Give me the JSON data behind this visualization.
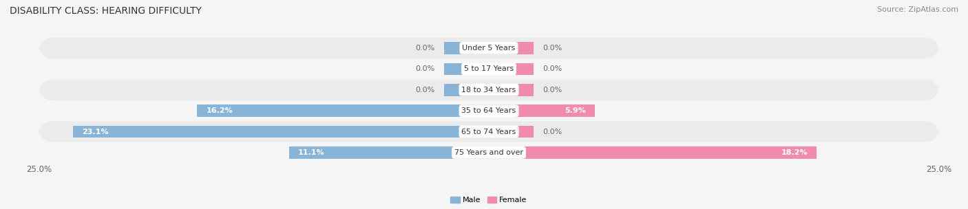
{
  "title": "DISABILITY CLASS: HEARING DIFFICULTY",
  "source": "Source: ZipAtlas.com",
  "categories": [
    "Under 5 Years",
    "5 to 17 Years",
    "18 to 34 Years",
    "35 to 64 Years",
    "65 to 74 Years",
    "75 Years and over"
  ],
  "male_values": [
    0.0,
    0.0,
    0.0,
    16.2,
    23.1,
    11.1
  ],
  "female_values": [
    0.0,
    0.0,
    0.0,
    5.9,
    0.0,
    18.2
  ],
  "stub_size": 2.5,
  "male_color": "#88b4d8",
  "female_color": "#f08bab",
  "row_bg_even": "#ebebeb",
  "row_bg_odd": "#f5f5f5",
  "fig_bg": "#f5f5f5",
  "title_fontsize": 10,
  "source_fontsize": 8,
  "tick_fontsize": 8.5,
  "label_fontsize": 8,
  "value_fontsize": 8,
  "bar_height": 0.58,
  "x_min": -25.0,
  "x_max": 25.0
}
